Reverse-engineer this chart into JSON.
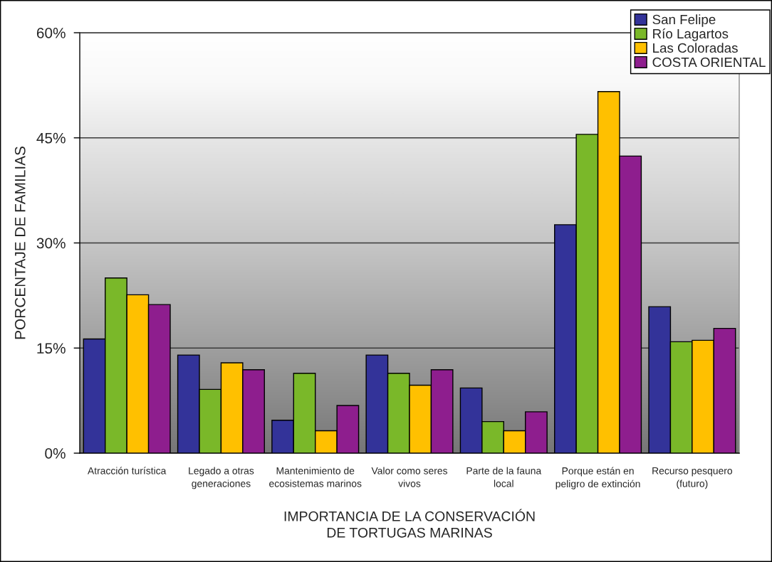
{
  "chart_data": {
    "type": "bar",
    "categories": [
      "Atracción turística",
      "Legado a otras\ngeneraciones",
      "Mantenimiento de\necosistemas marinos",
      "Valor como seres\nvivos",
      "Parte de la fauna\nlocal",
      "Porque están en\npeligro de extinción",
      "Recurso pesquero\n(futuro)"
    ],
    "series": [
      {
        "name": "San Felipe",
        "color": "#333399",
        "values": [
          16.3,
          14.0,
          4.7,
          14.0,
          9.3,
          32.6,
          20.9
        ]
      },
      {
        "name": "Río Lagartos",
        "color": "#7ab829",
        "values": [
          25.0,
          9.1,
          11.4,
          11.4,
          4.5,
          45.5,
          15.9
        ]
      },
      {
        "name": "Las Coloradas",
        "color": "#ffc000",
        "values": [
          22.6,
          12.9,
          3.2,
          9.7,
          3.2,
          51.6,
          16.1
        ]
      },
      {
        "name": "COSTA ORIENTAL",
        "color": "#8e1e8e",
        "values": [
          21.2,
          11.9,
          6.8,
          11.9,
          5.9,
          42.4,
          17.8
        ]
      }
    ],
    "xlabel": "IMPORTANCIA DE LA CONSERVACIÓN\nDE TORTUGAS MARINAS",
    "ylabel": "PORCENTAJE DE FAMILIAS",
    "ylim": [
      0,
      60
    ],
    "yticks": [
      {
        "value": 0,
        "label": "0%"
      },
      {
        "value": 15,
        "label": "15%"
      },
      {
        "value": 30,
        "label": "30%"
      },
      {
        "value": 45,
        "label": "45%"
      },
      {
        "value": 60,
        "label": "60%"
      }
    ],
    "grid": "y",
    "legend": "top right"
  }
}
